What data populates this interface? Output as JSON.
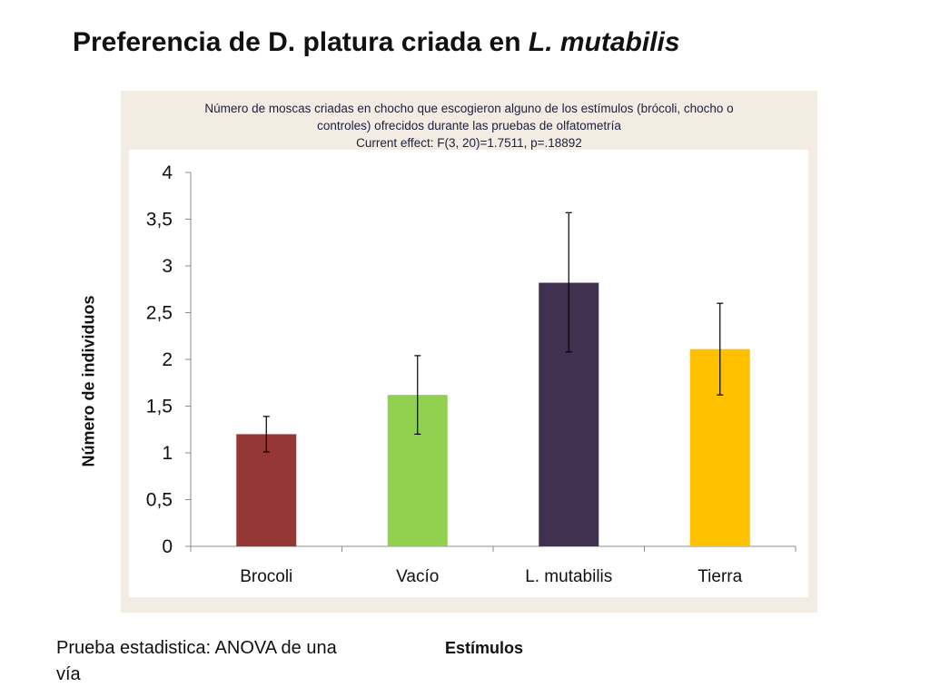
{
  "slide": {
    "title_prefix": "Preferencia de D. platura criada en ",
    "title_emphasis": "L. mutabilis",
    "note": "Prueba estadistica: ANOVA de una vía"
  },
  "figure": {
    "header_line1": "Número de moscas criadas en chocho que escogieron alguno de los estímulos (brócoli, chocho o",
    "header_line2": "controles) ofrecidos durante las pruebas de olfatometría",
    "header_line3": "Current effect: F(3, 20)=1.7511, p=.18892"
  },
  "chart_data": {
    "type": "bar",
    "categories": [
      "Brocoli",
      "Vacío",
      "L. mutabilis",
      "Tierra"
    ],
    "values": [
      1.2,
      1.62,
      2.82,
      2.11
    ],
    "error_low": [
      1.01,
      1.2,
      2.08,
      1.62
    ],
    "error_high": [
      1.39,
      2.04,
      3.57,
      2.6
    ],
    "colors": [
      "#953735",
      "#92d050",
      "#403151",
      "#ffc000"
    ],
    "xlabel": "Estímulos",
    "ylabel": "Número de individuos",
    "ylim": [
      0,
      4
    ],
    "yticks": [
      "0",
      "0,5",
      "1",
      "1,5",
      "2",
      "2,5",
      "3",
      "3,5",
      "4"
    ],
    "grid": false
  }
}
